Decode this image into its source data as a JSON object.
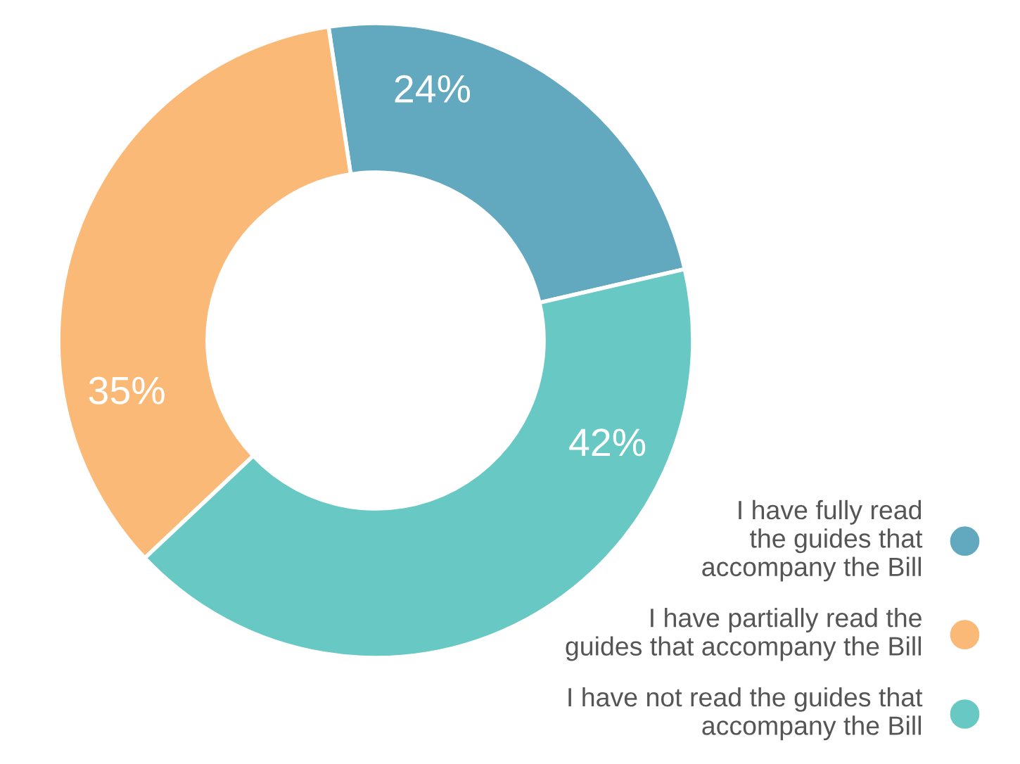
{
  "chart_data": {
    "type": "donut",
    "categories": [
      "I have fully read\nthe guides that\naccompany the Bill",
      "I have partially read the\nguides that accompany the Bill",
      "I have not read the guides that\naccompany the Bill"
    ],
    "values": [
      24,
      35,
      42
    ],
    "colors": [
      "#62a8bf",
      "#fbb978",
      "#68c8c3"
    ],
    "value_labels": [
      "24%",
      "35%",
      "42%"
    ],
    "legend": "bottom right"
  }
}
